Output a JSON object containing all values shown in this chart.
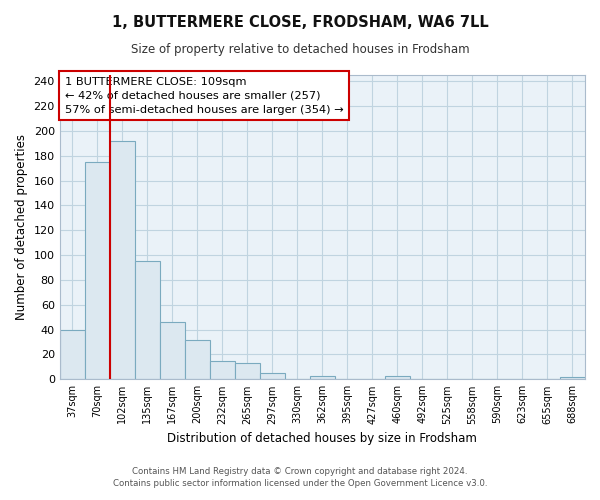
{
  "title": "1, BUTTERMERE CLOSE, FRODSHAM, WA6 7LL",
  "subtitle": "Size of property relative to detached houses in Frodsham",
  "xlabel": "Distribution of detached houses by size in Frodsham",
  "ylabel": "Number of detached properties",
  "bar_labels": [
    "37sqm",
    "70sqm",
    "102sqm",
    "135sqm",
    "167sqm",
    "200sqm",
    "232sqm",
    "265sqm",
    "297sqm",
    "330sqm",
    "362sqm",
    "395sqm",
    "427sqm",
    "460sqm",
    "492sqm",
    "525sqm",
    "558sqm",
    "590sqm",
    "623sqm",
    "655sqm",
    "688sqm"
  ],
  "bar_values": [
    40,
    175,
    192,
    95,
    46,
    32,
    15,
    13,
    5,
    0,
    3,
    0,
    0,
    3,
    0,
    0,
    0,
    0,
    0,
    0,
    2
  ],
  "bar_color": "#dce8f0",
  "bar_edge_color": "#7aaabf",
  "highlight_line_color": "#cc0000",
  "ylim": [
    0,
    245
  ],
  "yticks": [
    0,
    20,
    40,
    60,
    80,
    100,
    120,
    140,
    160,
    180,
    200,
    220,
    240
  ],
  "annotation_title": "1 BUTTERMERE CLOSE: 109sqm",
  "annotation_line1": "← 42% of detached houses are smaller (257)",
  "annotation_line2": "57% of semi-detached houses are larger (354) →",
  "footer_line1": "Contains HM Land Registry data © Crown copyright and database right 2024.",
  "footer_line2": "Contains public sector information licensed under the Open Government Licence v3.0.",
  "plot_bg_color": "#eaf2f8",
  "fig_bg_color": "#ffffff",
  "grid_color": "#c0d4e0"
}
